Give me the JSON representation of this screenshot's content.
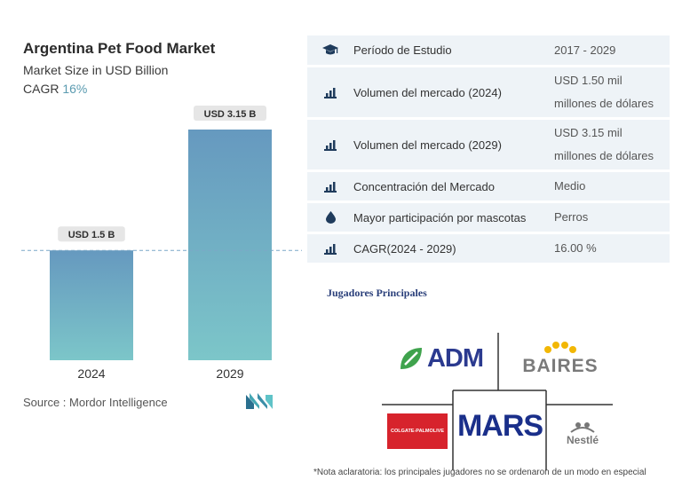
{
  "chart_data": {
    "type": "bar",
    "title": "Argentina Pet Food Market",
    "subtitle": "Market Size in USD Billion",
    "cagr_label": "CAGR",
    "cagr_value": "16%",
    "categories": [
      "2024",
      "2029"
    ],
    "values": [
      1.5,
      3.15
    ],
    "data_labels": [
      "USD 1.5 B",
      "USD 3.15 B"
    ],
    "ylim": [
      0,
      3.15
    ],
    "bar_color": "#6b9fbf",
    "bar_color_bottom": "#7bc4c9",
    "reference_line_value": 1.5
  },
  "source": {
    "label": "Source :",
    "value": "Mordor Intelligence"
  },
  "table": {
    "rows": [
      {
        "icon": "graduation-cap-icon",
        "label": "Período de Estudio",
        "value": [
          "2017 - 2029"
        ]
      },
      {
        "icon": "bar-chart-icon",
        "label": "Volumen del mercado (2024)",
        "value": [
          "USD 1.50 mil",
          "millones de dólares"
        ]
      },
      {
        "icon": "bar-chart-icon",
        "label": "Volumen del mercado (2029)",
        "value": [
          "USD 3.15 mil",
          "millones de dólares"
        ]
      },
      {
        "icon": "bar-chart-icon",
        "label": "Concentración del Mercado",
        "value": [
          "Medio"
        ]
      },
      {
        "icon": "drop-icon",
        "label": "Mayor participación por mascotas",
        "value": [
          "Perros"
        ]
      },
      {
        "icon": "bar-chart-icon",
        "label": "CAGR(2024 - 2029)",
        "value": [
          "16.00 %"
        ]
      }
    ]
  },
  "players": {
    "title": "Jugadores Principales",
    "logos": {
      "adm": "ADM",
      "baires": "BAIRES",
      "colgate": "COLGATE-PALMOLIVE",
      "mars": "MARS",
      "nestle": "Nestlé"
    }
  },
  "note": "*Nota aclaratoria: los principales jugadores no se ordenaron de un modo en especial",
  "colors": {
    "accent": "#5b9bb0",
    "table_bg": "#eef3f7",
    "icon": "#1f3b5c"
  }
}
